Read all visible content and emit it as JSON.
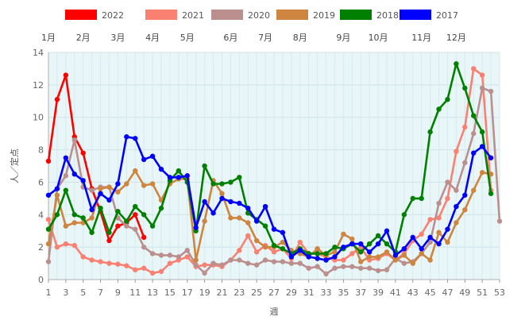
{
  "chart_data": {
    "type": "line",
    "xlabel": "週",
    "ylabel": "人／定点",
    "ylim": [
      0,
      14
    ],
    "xlim": [
      1,
      53
    ],
    "yticks": [
      0,
      2,
      4,
      6,
      8,
      10,
      12,
      14
    ],
    "xticks": [
      1,
      3,
      5,
      7,
      9,
      11,
      13,
      15,
      17,
      19,
      21,
      23,
      25,
      27,
      29,
      31,
      33,
      35,
      37,
      39,
      41,
      43,
      45,
      47,
      49,
      51,
      53
    ],
    "months": [
      {
        "label": "1月",
        "week": 1
      },
      {
        "label": "2月",
        "week": 5
      },
      {
        "label": "3月",
        "week": 9
      },
      {
        "label": "4月",
        "week": 13
      },
      {
        "label": "5月",
        "week": 17
      },
      {
        "label": "6月",
        "week": 22
      },
      {
        "label": "7月",
        "week": 26
      },
      {
        "label": "8月",
        "week": 30
      },
      {
        "label": "9月",
        "week": 35
      },
      {
        "label": "10月",
        "week": 39
      },
      {
        "label": "11月",
        "week": 44
      },
      {
        "label": "12月",
        "week": 48
      }
    ],
    "grid": true,
    "legend_position": "top",
    "background_color": "#e8f6f8",
    "series": [
      {
        "name": "2022",
        "color": "#ff0000",
        "x": [
          1,
          2,
          3,
          4,
          5,
          6,
          7,
          8,
          9,
          10,
          11,
          12
        ],
        "values": [
          7.3,
          11.1,
          12.6,
          8.8,
          7.8,
          5.6,
          4.2,
          2.4,
          3.3,
          3.5,
          4.0,
          2.6
        ]
      },
      {
        "name": "2021",
        "color": "#fa8072",
        "x": [
          1,
          2,
          3,
          4,
          5,
          6,
          7,
          8,
          9,
          10,
          11,
          12,
          13,
          14,
          15,
          16,
          17,
          18,
          19,
          20,
          21,
          22,
          23,
          24,
          25,
          26,
          27,
          28,
          29,
          30,
          31,
          32,
          33,
          34,
          35,
          36,
          37,
          38,
          39,
          40,
          41,
          42,
          43,
          44,
          45,
          46,
          47,
          48,
          49,
          50,
          51,
          52
        ],
        "values": [
          3.7,
          2.0,
          2.2,
          2.1,
          1.4,
          1.2,
          1.1,
          1.0,
          0.95,
          0.85,
          0.6,
          0.7,
          0.4,
          0.5,
          1.0,
          1.2,
          1.4,
          0.8,
          0.9,
          0.9,
          0.8,
          1.2,
          1.8,
          2.7,
          1.7,
          2.1,
          1.7,
          1.9,
          1.3,
          2.3,
          1.6,
          1.6,
          1.4,
          1.2,
          1.2,
          1.6,
          2.0,
          1.2,
          1.3,
          1.6,
          1.2,
          1.6,
          2.4,
          2.8,
          3.7,
          3.8,
          5.0,
          7.9,
          9.4,
          13.0,
          12.6,
          5.5
        ]
      },
      {
        "name": "2020",
        "color": "#bc8f8f",
        "x": [
          1,
          2,
          3,
          4,
          5,
          6,
          7,
          8,
          9,
          10,
          11,
          12,
          13,
          14,
          15,
          16,
          17,
          18,
          19,
          20,
          21,
          22,
          23,
          24,
          25,
          26,
          27,
          28,
          29,
          30,
          31,
          32,
          33,
          34,
          35,
          36,
          37,
          38,
          39,
          40,
          41,
          42,
          43,
          44,
          45,
          46,
          47,
          48,
          49,
          50,
          51,
          52,
          53
        ],
        "values": [
          1.1,
          5.6,
          6.4,
          8.6,
          5.7,
          5.5,
          5.7,
          5.7,
          3.8,
          3.3,
          3.1,
          2.0,
          1.6,
          1.5,
          1.5,
          1.4,
          1.8,
          0.9,
          0.4,
          1.0,
          0.9,
          1.2,
          1.2,
          1.0,
          0.9,
          1.2,
          1.1,
          1.1,
          1.0,
          1.0,
          0.7,
          0.8,
          0.35,
          0.7,
          0.8,
          0.8,
          0.7,
          0.7,
          0.55,
          0.6,
          1.3,
          1.0,
          1.1,
          1.6,
          2.3,
          4.7,
          6.0,
          5.5,
          7.2,
          9.0,
          11.8,
          11.6,
          3.6
        ]
      },
      {
        "name": "2019",
        "color": "#cd853f",
        "x": [
          1,
          2,
          3,
          4,
          5,
          6,
          7,
          8,
          9,
          10,
          11,
          12,
          13,
          14,
          15,
          16,
          17,
          18,
          19,
          20,
          21,
          22,
          23,
          24,
          25,
          26,
          27,
          28,
          29,
          30,
          31,
          32,
          33,
          34,
          35,
          36,
          37,
          38,
          39,
          40,
          41,
          42,
          43,
          44,
          45,
          46,
          47,
          48,
          49,
          50,
          51,
          52
        ],
        "values": [
          2.2,
          5.2,
          3.3,
          3.5,
          3.5,
          3.8,
          5.6,
          5.7,
          5.4,
          5.9,
          6.7,
          5.8,
          5.9,
          4.9,
          5.9,
          6.2,
          6.2,
          1.2,
          3.6,
          6.1,
          5.3,
          3.8,
          3.8,
          3.5,
          2.4,
          2.0,
          2.0,
          2.3,
          1.8,
          1.6,
          1.4,
          1.9,
          1.5,
          1.7,
          2.8,
          2.5,
          1.1,
          1.4,
          1.4,
          1.7,
          1.2,
          1.5,
          1.0,
          1.6,
          1.2,
          2.9,
          2.3,
          3.5,
          4.3,
          5.5,
          6.6,
          6.5
        ]
      },
      {
        "name": "2018",
        "color": "#008000",
        "x": [
          1,
          2,
          3,
          4,
          5,
          6,
          7,
          8,
          9,
          10,
          11,
          12,
          13,
          14,
          15,
          16,
          17,
          18,
          19,
          20,
          21,
          22,
          23,
          24,
          25,
          26,
          27,
          28,
          29,
          30,
          31,
          32,
          33,
          34,
          35,
          36,
          37,
          38,
          39,
          40,
          41,
          42,
          43,
          44,
          45,
          46,
          47,
          48,
          49,
          50,
          51,
          52
        ],
        "values": [
          3.1,
          4.0,
          5.5,
          4.0,
          3.8,
          2.9,
          4.4,
          2.9,
          4.2,
          3.6,
          4.5,
          4.0,
          3.3,
          4.4,
          6.1,
          6.7,
          6.0,
          3.0,
          7.0,
          5.9,
          5.9,
          6.0,
          6.3,
          4.1,
          3.7,
          3.3,
          2.1,
          1.9,
          1.6,
          1.9,
          1.6,
          1.6,
          1.6,
          2.0,
          1.9,
          2.2,
          1.7,
          2.2,
          2.7,
          2.2,
          1.7,
          4.0,
          5.0,
          5.0,
          9.1,
          10.5,
          11.1,
          13.3,
          11.8,
          10.1,
          9.1,
          5.3
        ]
      },
      {
        "name": "2017",
        "color": "#0000ff",
        "x": [
          1,
          2,
          3,
          4,
          5,
          6,
          7,
          8,
          9,
          10,
          11,
          12,
          13,
          14,
          15,
          16,
          17,
          18,
          19,
          20,
          21,
          22,
          23,
          24,
          25,
          26,
          27,
          28,
          29,
          30,
          31,
          32,
          33,
          34,
          35,
          36,
          37,
          38,
          39,
          40,
          41,
          42,
          43,
          44,
          45,
          46,
          47,
          48,
          49,
          50,
          51,
          52
        ],
        "values": [
          5.2,
          5.6,
          7.5,
          6.5,
          6.1,
          4.3,
          5.3,
          4.9,
          5.9,
          8.8,
          8.7,
          7.4,
          7.6,
          6.8,
          6.3,
          6.3,
          6.4,
          3.2,
          4.8,
          4.1,
          5.0,
          4.8,
          4.7,
          4.4,
          3.6,
          4.5,
          3.1,
          2.9,
          1.4,
          1.8,
          1.4,
          1.3,
          1.2,
          1.4,
          2.0,
          2.2,
          2.2,
          1.7,
          2.2,
          3.0,
          1.5,
          1.9,
          2.6,
          1.9,
          2.6,
          2.2,
          3.1,
          4.5,
          5.2,
          7.8,
          8.2,
          7.5
        ]
      }
    ]
  }
}
